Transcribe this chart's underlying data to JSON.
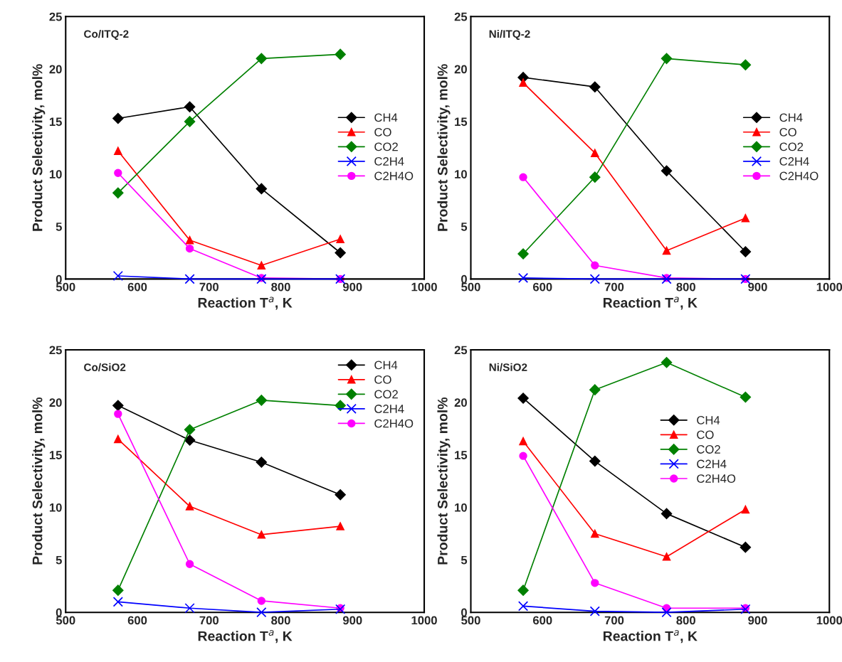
{
  "chart_data": [
    {
      "type": "line",
      "title": "Co/ITQ-2",
      "xlabel": "Reaction T$^{a}$, K",
      "ylabel": "Product Selectivity, mol%",
      "x": [
        573,
        673,
        773,
        883
      ],
      "xlim": [
        500,
        1000
      ],
      "xticks": [
        500,
        600,
        700,
        800,
        900,
        1000
      ],
      "ylim": [
        0,
        25
      ],
      "yticks": [
        0,
        5,
        10,
        15,
        20,
        25
      ],
      "legend": "right",
      "series": [
        {
          "name": "CH4",
          "color": "#000000",
          "marker": "diamond",
          "values": [
            15.3,
            16.4,
            8.6,
            2.5
          ]
        },
        {
          "name": "CO",
          "color": "#ff0000",
          "marker": "triangle",
          "values": [
            12.2,
            3.7,
            1.3,
            3.8
          ]
        },
        {
          "name": "CO2",
          "color": "#008000",
          "marker": "diamond",
          "values": [
            8.2,
            15.0,
            21.0,
            21.4
          ]
        },
        {
          "name": "C2H4",
          "color": "#0000ff",
          "marker": "cross",
          "values": [
            0.3,
            0.0,
            0.0,
            0.0
          ]
        },
        {
          "name": "C2H4O",
          "color": "#ff00ff",
          "marker": "circle",
          "values": [
            10.1,
            2.9,
            0.1,
            0.0
          ]
        }
      ]
    },
    {
      "type": "line",
      "title": "Ni/ITQ-2",
      "xlabel": "Reaction T$^{a}$, K",
      "ylabel": "Product Selectivity, mol%",
      "x": [
        573,
        673,
        773,
        883
      ],
      "xlim": [
        500,
        1000
      ],
      "xticks": [
        500,
        600,
        700,
        800,
        900,
        1000
      ],
      "ylim": [
        0,
        25
      ],
      "yticks": [
        0,
        5,
        10,
        15,
        20,
        25
      ],
      "legend": "right",
      "series": [
        {
          "name": "CH4",
          "color": "#000000",
          "marker": "diamond",
          "values": [
            19.2,
            18.3,
            10.3,
            2.6
          ]
        },
        {
          "name": "CO",
          "color": "#ff0000",
          "marker": "triangle",
          "values": [
            18.7,
            12.0,
            2.7,
            5.8
          ]
        },
        {
          "name": "CO2",
          "color": "#008000",
          "marker": "diamond",
          "values": [
            2.4,
            9.7,
            21.0,
            20.4
          ]
        },
        {
          "name": "C2H4",
          "color": "#0000ff",
          "marker": "cross",
          "values": [
            0.1,
            0.0,
            0.0,
            0.0
          ]
        },
        {
          "name": "C2H4O",
          "color": "#ff00ff",
          "marker": "circle",
          "values": [
            9.7,
            1.3,
            0.1,
            0.0
          ]
        }
      ]
    },
    {
      "type": "line",
      "title": "Co/SiO2",
      "xlabel": "Reaction T$^{a}$, K",
      "ylabel": "Product Selectivity, mol%",
      "x": [
        573,
        673,
        773,
        883
      ],
      "xlim": [
        500,
        1000
      ],
      "xticks": [
        500,
        600,
        700,
        800,
        900,
        1000
      ],
      "ylim": [
        0,
        25
      ],
      "yticks": [
        0,
        5,
        10,
        15,
        20,
        25
      ],
      "legend": "top right",
      "series": [
        {
          "name": "CH4",
          "color": "#000000",
          "marker": "diamond",
          "values": [
            19.7,
            16.4,
            14.3,
            11.2
          ]
        },
        {
          "name": "CO",
          "color": "#ff0000",
          "marker": "triangle",
          "values": [
            16.5,
            10.1,
            7.4,
            8.2
          ]
        },
        {
          "name": "CO2",
          "color": "#008000",
          "marker": "diamond",
          "values": [
            2.1,
            17.4,
            20.2,
            19.7
          ]
        },
        {
          "name": "C2H4",
          "color": "#0000ff",
          "marker": "cross",
          "values": [
            1.0,
            0.4,
            0.0,
            0.3
          ]
        },
        {
          "name": "C2H4O",
          "color": "#ff00ff",
          "marker": "circle",
          "values": [
            18.9,
            4.6,
            1.1,
            0.4
          ]
        }
      ]
    },
    {
      "type": "line",
      "title": "Ni/SiO2",
      "xlabel": "Reaction T$^{a}$, K",
      "ylabel": "Product Selectivity, mol%",
      "x": [
        573,
        673,
        773,
        883
      ],
      "xlim": [
        500,
        1000
      ],
      "xticks": [
        500,
        600,
        700,
        800,
        900,
        1000
      ],
      "ylim": [
        0,
        25
      ],
      "yticks": [
        0,
        5,
        10,
        15,
        20,
        25
      ],
      "legend": "center",
      "series": [
        {
          "name": "CH4",
          "color": "#000000",
          "marker": "diamond",
          "values": [
            20.4,
            14.4,
            9.4,
            6.2
          ]
        },
        {
          "name": "CO",
          "color": "#ff0000",
          "marker": "triangle",
          "values": [
            16.3,
            7.5,
            5.3,
            9.8
          ]
        },
        {
          "name": "CO2",
          "color": "#008000",
          "marker": "diamond",
          "values": [
            2.1,
            21.2,
            23.8,
            20.5
          ]
        },
        {
          "name": "C2H4",
          "color": "#0000ff",
          "marker": "cross",
          "values": [
            0.6,
            0.1,
            0.0,
            0.3
          ]
        },
        {
          "name": "C2H4O",
          "color": "#ff00ff",
          "marker": "circle",
          "values": [
            14.9,
            2.8,
            0.4,
            0.4
          ]
        }
      ]
    }
  ]
}
